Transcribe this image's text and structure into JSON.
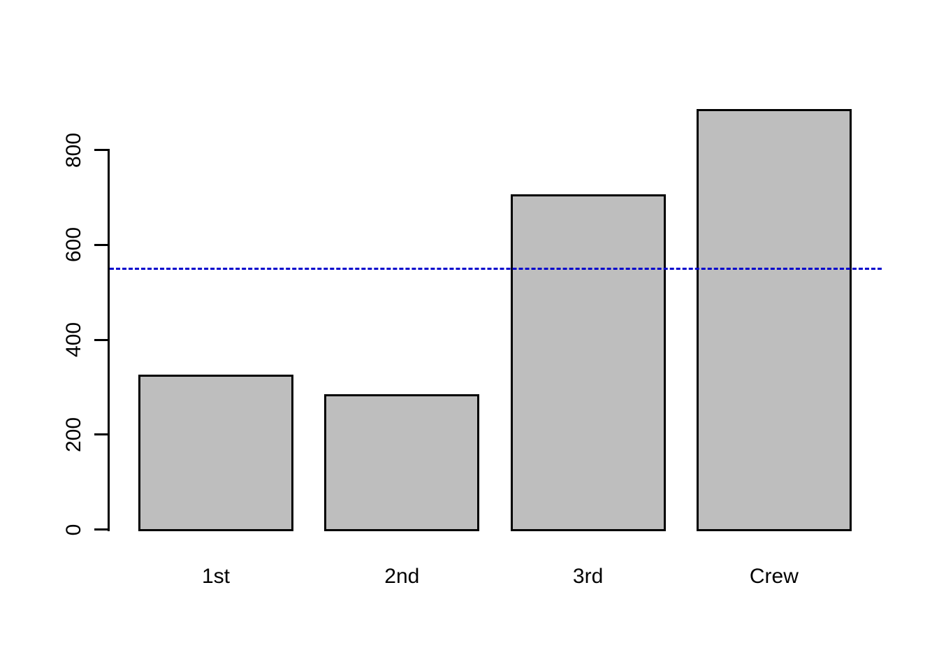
{
  "chart_data": {
    "type": "bar",
    "categories": [
      "1st",
      "2nd",
      "3rd",
      "Crew"
    ],
    "values": [
      325,
      285,
      706,
      885
    ],
    "title": "",
    "xlabel": "",
    "ylabel": "",
    "ylim": [
      0,
      885
    ],
    "yticks": [
      0,
      200,
      400,
      600,
      800
    ],
    "grid": false,
    "legend": false,
    "reference_line": {
      "value": 550,
      "style": "dashed",
      "color": "#0000CC"
    },
    "colors": {
      "bar_fill": "#BEBEBE",
      "bar_border": "#000000",
      "axis": "#000000",
      "background": "#FFFFFF"
    }
  }
}
